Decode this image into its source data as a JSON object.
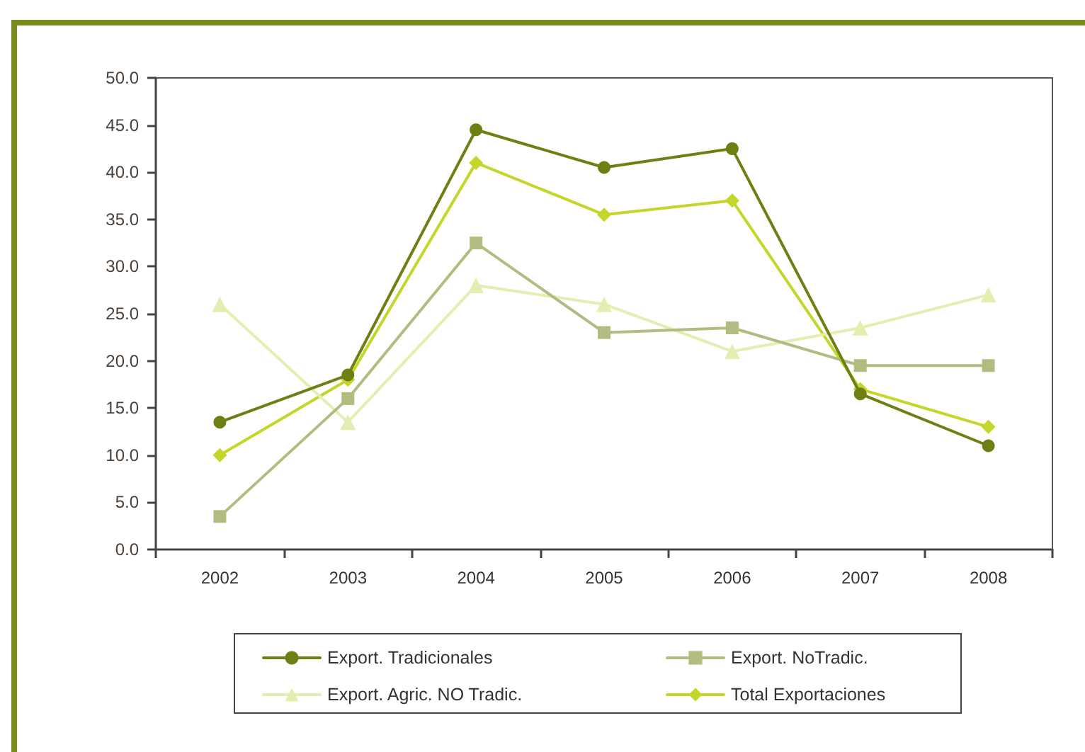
{
  "chart_data": {
    "type": "line",
    "categories": [
      "2002",
      "2003",
      "2004",
      "2005",
      "2006",
      "2007",
      "2008"
    ],
    "series": [
      {
        "name": "Export. Tradicionales",
        "color": "#6e7f14",
        "marker": "circle",
        "values": [
          13.5,
          18.5,
          44.5,
          40.5,
          42.5,
          16.5,
          11.0
        ]
      },
      {
        "name": "Export. NoTradic.",
        "color": "#b3bc80",
        "marker": "square",
        "values": [
          3.5,
          16.0,
          32.5,
          23.0,
          23.5,
          19.5,
          19.5
        ]
      },
      {
        "name": "Export. Agric. NO Tradic.",
        "color": "#e6edb0",
        "marker": "triangle",
        "values": [
          26.0,
          13.5,
          28.0,
          26.0,
          21.0,
          23.5,
          27.0
        ]
      },
      {
        "name": "Total Exportaciones",
        "color": "#c5d62a",
        "marker": "diamond",
        "values": [
          10.0,
          18.0,
          41.0,
          35.5,
          37.0,
          17.0,
          13.0
        ]
      }
    ],
    "ylim": [
      0,
      50
    ],
    "yticks": [
      {
        "value": 0,
        "label": "0.0"
      },
      {
        "value": 5,
        "label": "5.0"
      },
      {
        "value": 10,
        "label": "10.0"
      },
      {
        "value": 15,
        "label": "15.0"
      },
      {
        "value": 20,
        "label": "20.0"
      },
      {
        "value": 25,
        "label": "25.0"
      },
      {
        "value": 30,
        "label": "30.0"
      },
      {
        "value": 35,
        "label": "35.0"
      },
      {
        "value": 40,
        "label": "40.0"
      },
      {
        "value": 45,
        "label": "45.0"
      },
      {
        "value": 50,
        "label": "50.0"
      }
    ],
    "legend": "bottom",
    "line_style": "solid"
  }
}
